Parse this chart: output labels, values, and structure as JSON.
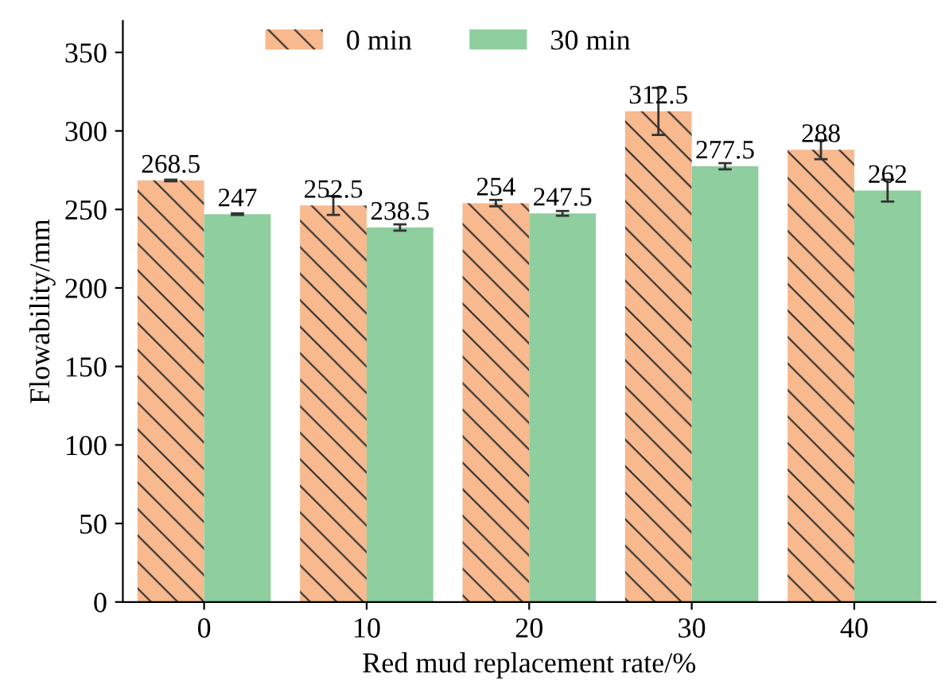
{
  "chart_data": {
    "type": "bar",
    "xlabel": "Red mud replacement rate/%",
    "ylabel": "Flowability/mm",
    "categories": [
      "0",
      "10",
      "20",
      "30",
      "40"
    ],
    "series": [
      {
        "name": "0 min",
        "color": "#f7b98d",
        "values": [
          268.5,
          252.5,
          254,
          312.5,
          288
        ],
        "errors": [
          0.5,
          6,
          2,
          15,
          6
        ]
      },
      {
        "name": "30 min",
        "color": "#8fce9e",
        "values": [
          247,
          238.5,
          247.5,
          277.5,
          262
        ],
        "errors": [
          0.5,
          2,
          1.5,
          2,
          7
        ]
      }
    ],
    "ylim": [
      0,
      370
    ],
    "yticks": [
      0,
      50,
      100,
      150,
      200,
      250,
      300,
      350
    ],
    "data_labels": true,
    "legend": "top",
    "grid": false
  }
}
